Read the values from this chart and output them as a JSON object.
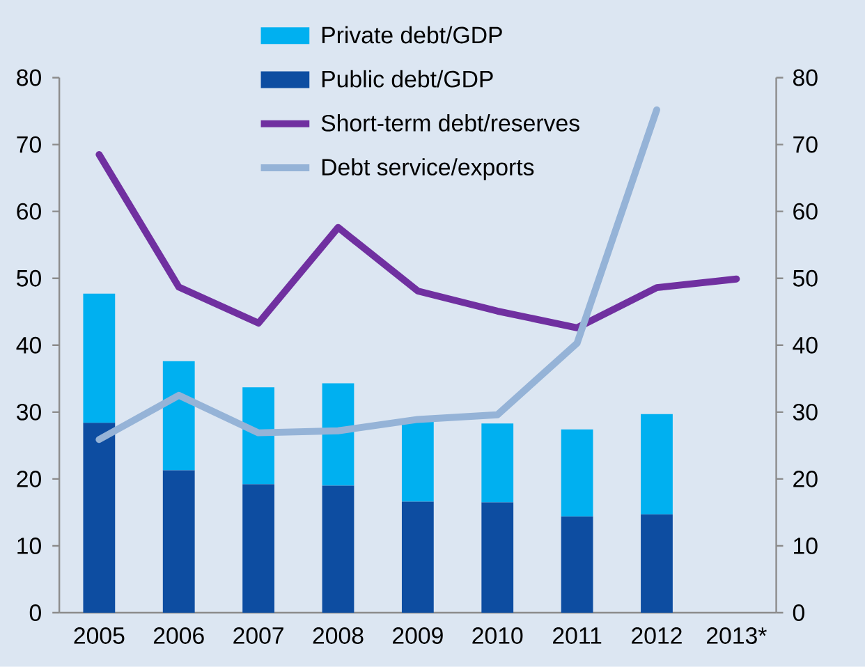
{
  "chart_data": {
    "type": "bar",
    "stacked": true,
    "categories": [
      "2005",
      "2006",
      "2007",
      "2008",
      "2009",
      "2010",
      "2011",
      "2012",
      "2013*"
    ],
    "series": [
      {
        "name": "Public debt/GDP",
        "color": "#0d4da1",
        "values": [
          28.4,
          21.3,
          19.2,
          19.0,
          16.6,
          16.5,
          14.4,
          14.7,
          null
        ]
      },
      {
        "name": "Private debt/GDP",
        "color": "#00b0f0",
        "values": [
          19.3,
          16.3,
          14.5,
          15.3,
          12.3,
          11.8,
          13.0,
          15.0,
          null
        ]
      },
      {
        "name": "Short-term debt/reserves",
        "type": "line",
        "axis": "y2",
        "color": "#7030a0",
        "values": [
          68.5,
          48.7,
          43.3,
          57.6,
          48.1,
          45.1,
          42.6,
          48.6,
          49.9
        ]
      },
      {
        "name": "Debt service/exports",
        "type": "line",
        "axis": "y2",
        "color": "#95b3d7",
        "values": [
          25.9,
          32.5,
          26.9,
          27.2,
          28.9,
          29.6,
          40.3,
          75.2,
          null
        ]
      }
    ],
    "ylim": [
      0,
      80
    ],
    "yticks": [
      0,
      10,
      20,
      30,
      40,
      50,
      60,
      70,
      80
    ],
    "y2lim": [
      0,
      80
    ],
    "y2ticks": [
      0,
      10,
      20,
      30,
      40,
      50,
      60,
      70,
      80
    ],
    "marker": "none",
    "legend": "top"
  }
}
